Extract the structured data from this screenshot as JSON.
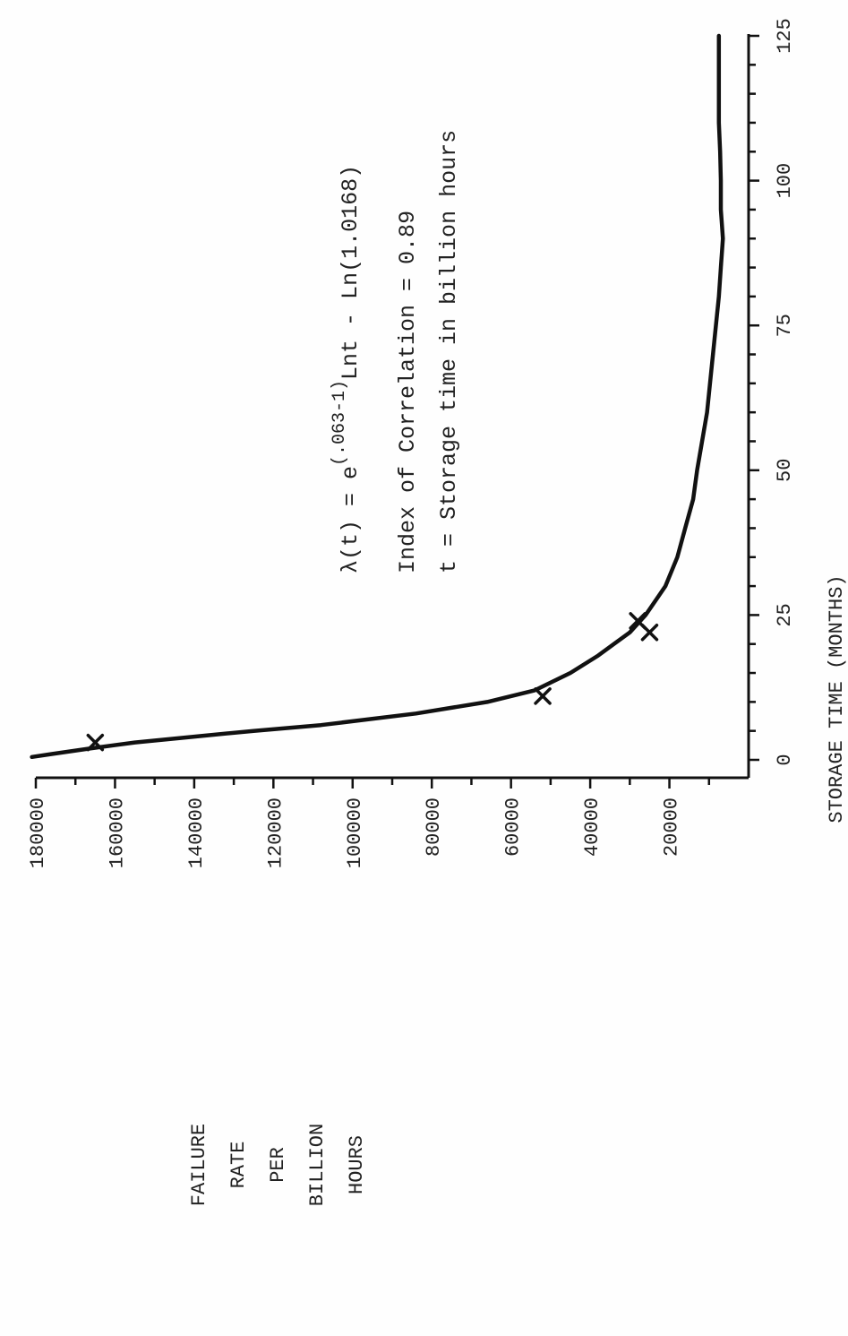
{
  "chart_data": {
    "type": "line",
    "xlabel": "STORAGE TIME (MONTHS)",
    "ylabel_lines": [
      "FAILURE",
      "RATE",
      "PER",
      "BILLION",
      "HOURS"
    ],
    "xlim": [
      0,
      125
    ],
    "ylim": [
      0,
      180000
    ],
    "x_tick_labels": [
      "0",
      "25",
      "50",
      "75",
      "100",
      "125"
    ],
    "x_tick_values": [
      0,
      25,
      50,
      75,
      100,
      125
    ],
    "x_minor_tick_step": 5,
    "y_tick_labels": [
      "20000",
      "40000",
      "60000",
      "80000",
      "100000",
      "120000",
      "140000",
      "160000",
      "180000"
    ],
    "y_tick_values": [
      20000,
      40000,
      60000,
      80000,
      100000,
      120000,
      140000,
      160000,
      180000
    ],
    "y_minor_tick_step": 10000,
    "grid": false,
    "orientation": "rotated 90 degrees counter-clockwise",
    "series": [
      {
        "kind": "fitted-curve",
        "x": [
          0.5,
          1,
          2,
          3,
          4,
          5,
          6,
          8,
          10,
          12,
          15,
          18,
          20,
          22,
          25,
          28,
          30,
          35,
          40,
          45,
          50,
          60,
          70,
          80,
          85,
          90,
          95,
          100,
          105,
          110,
          115,
          120,
          125
        ],
        "y": [
          181000,
          176000,
          166000,
          155000,
          140000,
          125000,
          108000,
          84000,
          66000,
          54000,
          45000,
          38000,
          34000,
          30000,
          26000,
          23000,
          21000,
          18000,
          16000,
          14000,
          13000,
          10500,
          9000,
          7500,
          7000,
          6500,
          7000,
          7000,
          7200,
          7500,
          7500,
          7500,
          7500
        ]
      },
      {
        "kind": "observed-points",
        "marker": "x",
        "x": [
          3,
          11,
          22,
          24
        ],
        "y": [
          165000,
          52000,
          25000,
          28000
        ]
      }
    ],
    "annotations": {
      "formula_prefix": "λ(t) = e",
      "formula_exponent": "(.063-1)",
      "formula_suffix": "Lnt - Ln(1.0168)",
      "correlation": "Index of Correlation = 0.89",
      "definition": "t = Storage time in billion hours"
    }
  }
}
